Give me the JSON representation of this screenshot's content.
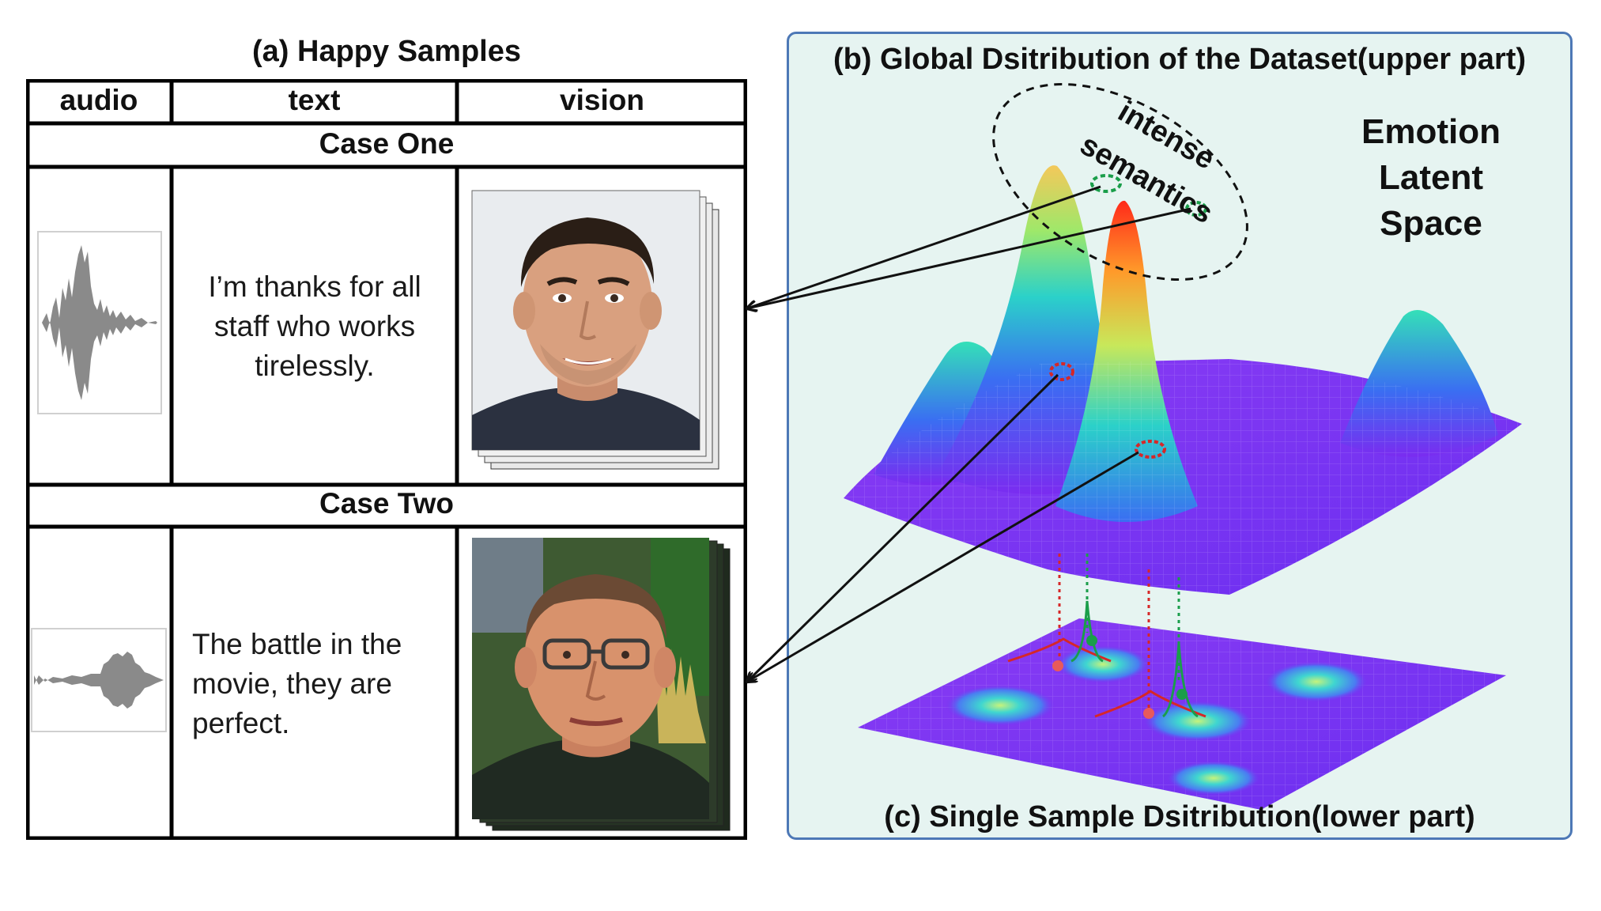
{
  "left": {
    "title": "(a) Happy Samples",
    "headers": [
      "audio",
      "text",
      "vision"
    ],
    "cases": [
      {
        "label": "Case One",
        "text_lines": [
          "I’m thanks for all",
          "staff who works",
          "tirelessly."
        ]
      },
      {
        "label": "Case Two",
        "text_lines": [
          "The battle in the",
          "movie, they are",
          "perfect."
        ]
      }
    ]
  },
  "right": {
    "title": "(b) Global Dsitribution of the Dataset(upper part)",
    "latent_lines": [
      "Emotion",
      "Latent",
      "Space"
    ],
    "annotation_lines": [
      "intense",
      "semantics"
    ],
    "bottom_title": "(c) Single Sample Dsitribution(lower part)"
  },
  "colors": {
    "panel_bg": "#e6f4f1",
    "panel_border": "#4d78b6",
    "intense_marker": "#1a9e4a",
    "weak_marker": "#d62728",
    "surface_low": "#7a2cf0",
    "surface_high": "#ff3a1a"
  }
}
